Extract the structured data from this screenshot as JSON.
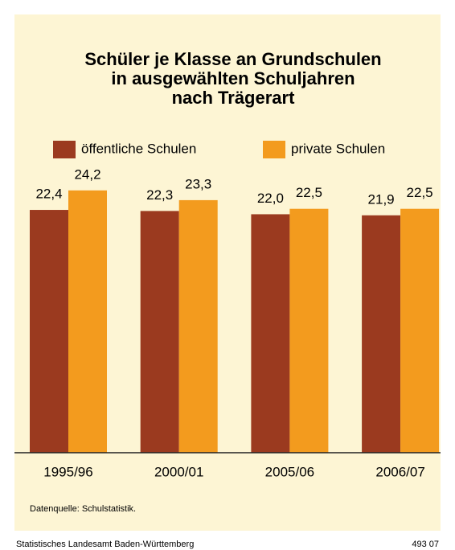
{
  "chart_data": {
    "type": "bar",
    "title": [
      "Schüler je Klasse an Grundschulen",
      "in ausgewählten Schuljahren",
      "nach Trägerart"
    ],
    "categories": [
      "1995/96",
      "2000/01",
      "2005/06",
      "2006/07"
    ],
    "series": [
      {
        "name": "öffentliche Schulen",
        "color": "#9b3a1f",
        "values": [
          22.4,
          22.3,
          22.0,
          21.9
        ],
        "value_labels": [
          "22,4",
          "22,3",
          "22,0",
          "21,9"
        ]
      },
      {
        "name": "private Schulen",
        "color": "#f39b1e",
        "values": [
          24.2,
          23.3,
          22.5,
          22.5
        ],
        "value_labels": [
          "24,2",
          "23,3",
          "22,5",
          "22,5"
        ]
      }
    ],
    "ylim": [
      0,
      25
    ],
    "source": "Datenquelle: Schulstatistik.",
    "footer_left": "Statistisches Landesamt Baden-Württemberg",
    "footer_right": "493 07"
  }
}
